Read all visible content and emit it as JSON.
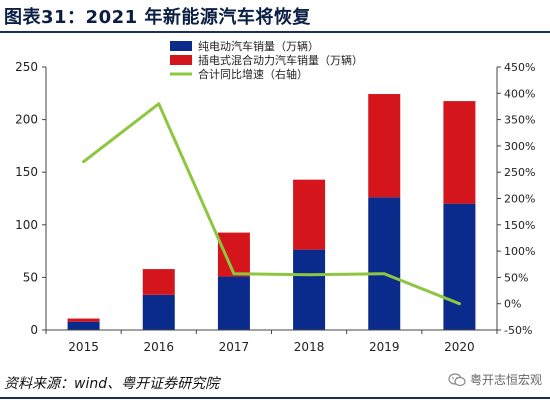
{
  "title": "图表31：2021 年新能源汽车将恢复",
  "source": "资料来源：wind、粤开证券研究院",
  "watermark": "粤开志恒宏观",
  "chart_data": {
    "type": "bar",
    "stacked": true,
    "categories": [
      "2015",
      "2016",
      "2017",
      "2018",
      "2019",
      "2020"
    ],
    "series": [
      {
        "name": "纯电动汽车销量（万辆）",
        "kind": "bar",
        "axis": "left",
        "color": "#0a2a8c",
        "values": [
          7.9,
          33.4,
          50.8,
          76.4,
          126.1,
          120.1
        ]
      },
      {
        "name": "插电式混合动力汽车销量（万辆）",
        "kind": "bar",
        "axis": "left",
        "color": "#d4161c",
        "values": [
          3.0,
          24.5,
          41.8,
          66.5,
          98.2,
          97.5
        ]
      },
      {
        "name": "合计同比增速（右轴）",
        "kind": "line",
        "axis": "right",
        "color": "#8dc63f",
        "values": [
          270,
          380,
          57,
          55,
          57,
          0
        ]
      }
    ],
    "ylim": [
      0,
      250
    ],
    "yticks": [
      0,
      50,
      100,
      150,
      200,
      250
    ],
    "y2lim": [
      -50,
      450
    ],
    "y2ticks": [
      "-50%",
      "0%",
      "50%",
      "100%",
      "150%",
      "200%",
      "250%",
      "300%",
      "350%",
      "400%",
      "450%"
    ],
    "legend_position": "top-center",
    "grid": false
  }
}
